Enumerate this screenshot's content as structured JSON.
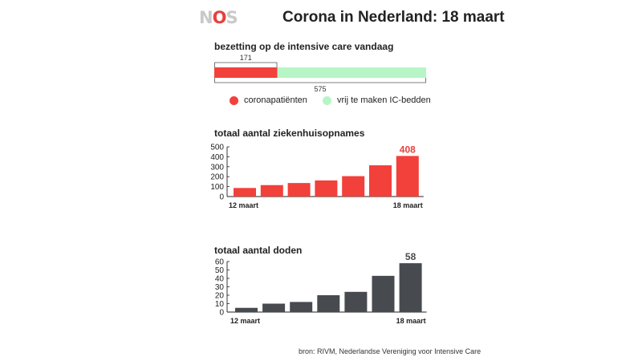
{
  "logo": {
    "text_n": "N",
    "text_o": "O",
    "text_s": "S",
    "accent": "#e8413b",
    "base": "#c9c9c9"
  },
  "title": "Corona in Nederland: 18 maart",
  "source": "bron: RIVM, Nederlandse Vereniging voor Intensive Care",
  "chart_data": [
    {
      "type": "bar",
      "orientation": "horizontal-stacked",
      "title": "bezetting op de intensive care vandaag",
      "series": [
        {
          "name": "coronapatiënten",
          "value": 171,
          "color": "#f2403b"
        },
        {
          "name": "vrij te maken IC-bedden",
          "value": 575,
          "color": "#b7f5c6"
        }
      ],
      "labels": {
        "part": "171",
        "total": "575"
      },
      "total": 575
    },
    {
      "type": "bar",
      "title": "totaal aantal ziekenhuisopnames",
      "values": [
        86,
        115,
        136,
        162,
        205,
        314,
        408
      ],
      "first_label": "12 maart",
      "last_label": "18 maart",
      "highlight_label": "408",
      "yticks": [
        "0",
        "100",
        "200",
        "300",
        "400",
        "500"
      ],
      "ylim": [
        0,
        500
      ],
      "color": "#f2403b",
      "label_color": "#e8413b"
    },
    {
      "type": "bar",
      "title": "totaal aantal doden",
      "values": [
        5,
        10,
        12,
        20,
        24,
        43,
        58
      ],
      "first_label": "12 maart",
      "last_label": "18 maart",
      "highlight_label": "58",
      "yticks": [
        "0",
        "10",
        "20",
        "30",
        "40",
        "50",
        "60"
      ],
      "ylim": [
        0,
        60
      ],
      "color": "#474b4f",
      "label_color": "#474b4f"
    }
  ]
}
